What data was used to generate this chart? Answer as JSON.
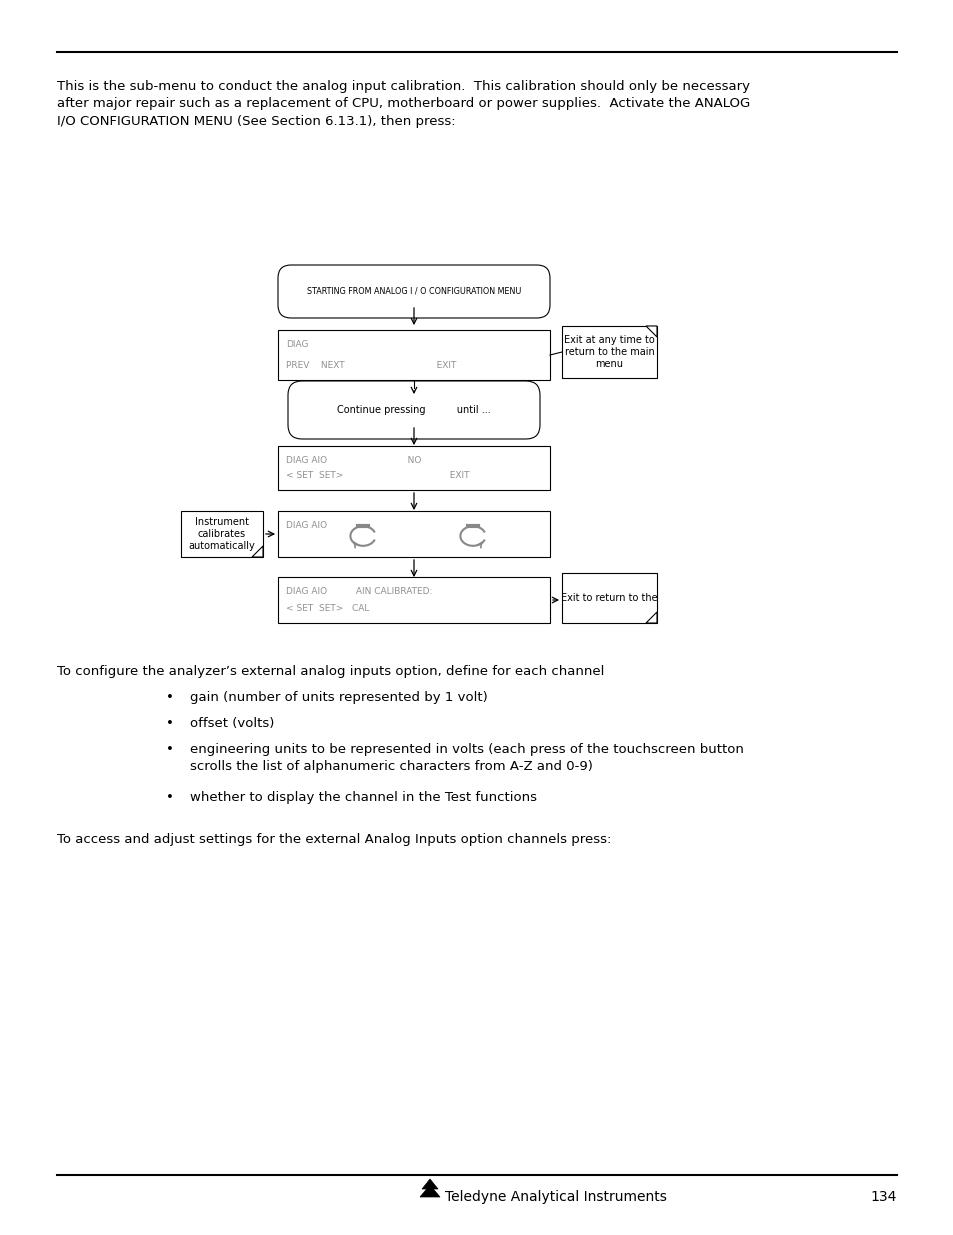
{
  "bg_color": "#ffffff",
  "body_text_1": "This is the sub-menu to conduct the analog input calibration.  This calibration should only be necessary\nafter major repair such as a replacement of CPU, motherboard or power supplies.  Activate the ANALOG\nI/O CONFIGURATION MENU (See Section 6.13.1), then press:",
  "body_text_2": "To configure the analyzer’s external analog inputs option, define for each channel",
  "bullet_items": [
    "gain (number of units represented by 1 volt)",
    "offset (volts)",
    "engineering units to be represented in volts (each press of the touchscreen button\nscrolls the list of alphanumeric characters from A-Z and 0-9)",
    "whether to display the channel in the Test functions"
  ],
  "body_text_3": "To access and adjust settings for the external Analog Inputs option channels press:",
  "footer_text": "Teledyne Analytical Instruments",
  "page_number": "134",
  "flowchart": {
    "box1_text": "STARTING FROM ANALOG I / O CONFIGURATION MENU",
    "box2_line1": "DIAG",
    "box2_line2": "PREV    NEXT                                                EXIT",
    "note1_text": "Exit at any time to\nreturn to the main\nmenu",
    "box3_text": "Continue pressing          until ...",
    "box4_line1": "DIAG AIO                                              NO",
    "box4_line2": "< SET  SET>                                            EXIT",
    "note2_text": "Instrument\ncalibrates\nautomatically",
    "box5_line1": "DIAG AIO",
    "box6_line1": "DIAG AIO          AIN CALIBRATED:",
    "box6_line2": "< SET  SET>   CAL",
    "note3_text": "Exit to return to the"
  }
}
